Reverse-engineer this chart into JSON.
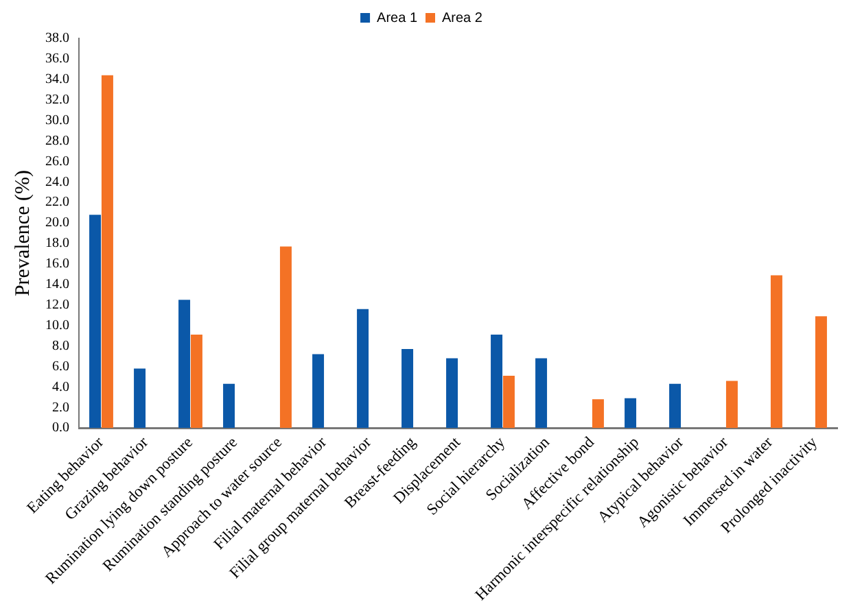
{
  "chart_data": {
    "type": "bar",
    "ylabel": "Prevalence (%)",
    "categories": [
      "Eating behavior",
      "Grazing behavior",
      "Rumination lying down posture",
      "Rumination standing posture",
      "Approach to water source",
      "Filial maternal behavior",
      "Filial group maternal behavior",
      "Breast-feeding",
      "Displacement",
      "Social hierarchy",
      "Socialization",
      "Affective bond",
      "Harmonic interspecific relationship",
      "Atypical behavior",
      "Agonistic behavior",
      "Immersed in water",
      "Prolonged inactivity"
    ],
    "series": [
      {
        "name": "Area 1",
        "color": "#0b58a8",
        "values": [
          20.8,
          5.8,
          12.5,
          4.3,
          null,
          7.2,
          11.6,
          7.7,
          6.8,
          9.1,
          6.8,
          null,
          2.9,
          4.3,
          null,
          null,
          null
        ]
      },
      {
        "name": "Area 2",
        "color": "#f47225",
        "values": [
          34.4,
          null,
          9.1,
          null,
          17.7,
          null,
          null,
          null,
          null,
          5.1,
          null,
          2.8,
          null,
          null,
          4.6,
          14.9,
          10.9
        ]
      }
    ],
    "ylim": [
      0,
      38
    ],
    "yticks": [
      {
        "value": 0,
        "label": "0.0"
      },
      {
        "value": 2,
        "label": "2.0"
      },
      {
        "value": 4,
        "label": "4.0"
      },
      {
        "value": 6,
        "label": "6.0"
      },
      {
        "value": 8,
        "label": "8.0"
      },
      {
        "value": 10,
        "label": "10.0"
      },
      {
        "value": 12,
        "label": "12.0"
      },
      {
        "value": 14,
        "label": "14.0"
      },
      {
        "value": 16,
        "label": "16.0"
      },
      {
        "value": 18,
        "label": "18.0"
      },
      {
        "value": 20,
        "label": "20.0"
      },
      {
        "value": 22,
        "label": "22.0"
      },
      {
        "value": 24,
        "label": "24.0"
      },
      {
        "value": 26,
        "label": "26.0"
      },
      {
        "value": 28,
        "label": "28.0"
      },
      {
        "value": 30,
        "label": "30.0"
      },
      {
        "value": 32,
        "label": "32.0"
      },
      {
        "value": 34,
        "label": "34.0"
      },
      {
        "value": 36,
        "label": "36.0"
      },
      {
        "value": 38,
        "label": "38.0"
      }
    ],
    "grid": false,
    "legend": "top"
  }
}
